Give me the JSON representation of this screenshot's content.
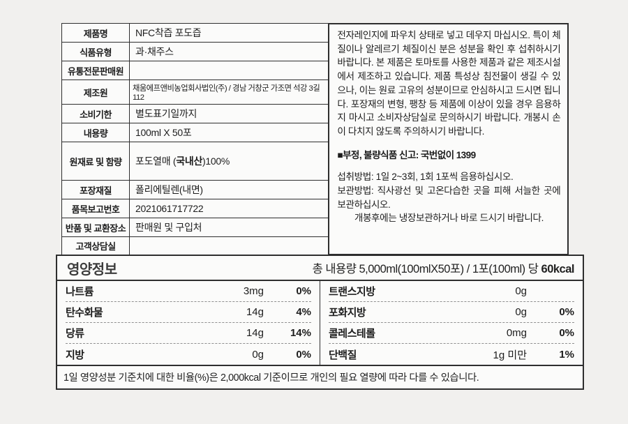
{
  "product_table": {
    "rows": [
      {
        "label": "제품명",
        "value": "NFC착즙 포도즙"
      },
      {
        "label": "식품유형",
        "value": "과·채주스"
      },
      {
        "label": "유통전문판매원",
        "value": ""
      },
      {
        "label": "제조원",
        "value": "채움에프앤비농업회사법인(주) / 경남 거창군 가조면 석강 3길 112"
      },
      {
        "label": "소비기한",
        "value": "별도표기일까지"
      },
      {
        "label": "내용량",
        "value": "100ml X 50포"
      },
      {
        "label": "원재료 및 함량",
        "value_pre": "포도열매 (",
        "value_bold": "국내산",
        "value_post": ")100%"
      },
      {
        "label": "포장재질",
        "value": "폴리에틸렌(내면)"
      },
      {
        "label": "품목보고번호",
        "value": "2021061717722"
      },
      {
        "label": "반품 및 교환장소",
        "value": "판매원 및 구입처"
      },
      {
        "label": "고객상담실",
        "value": ""
      }
    ]
  },
  "info_panel": {
    "paragraph": "전자레인지에 파우치 상태로 넣고 데우지 마십시오. 특이 체질이나 알레르기 체질이신 분은 성분을 확인 후 섭취하시기 바랍니다. 본 제품은 토마토를 사용한 제품과 같은 제조시설에서 제조하고 있습니다. 제품 특성상 침전물이 생길 수 있으나, 이는 원료 고유의 성분이므로 안심하시고 드시면 됩니다. 포장재의 변형, 팽창 등 제품에 이상이 있을 경우 음용하지 마시고 소비자상담실로 문의하시기 바랍니다. 개봉시 손이 다치지 않도록 주의하시기 바랍니다.",
    "report_notice": "■부정, 불량식품 신고: 국번없이 1399",
    "intake_method": "섭취방법: 1일 2~3회, 1회 1포씩 음용하십시오.",
    "storage_line1": "보관방법: 직사광선 및 고온다습한 곳을 피해 서늘한 곳에 보관하십시오.",
    "storage_line2": "개봉후에는 냉장보관하거나 바로 드시기 바랍니다."
  },
  "nutrition": {
    "title": "영양정보",
    "serving_prefix": "총 내용량 5,000ml(100mlX50포) / 1포(100ml) 당 ",
    "serving_kcal": "60kcal",
    "left_rows": [
      {
        "name": "나트륨",
        "amount": "3mg",
        "percent": "0%"
      },
      {
        "name": "탄수화물",
        "amount": "14g",
        "percent": "4%"
      },
      {
        "name": "당류",
        "amount": "14g",
        "percent": "14%"
      },
      {
        "name": "지방",
        "amount": "0g",
        "percent": "0%"
      }
    ],
    "right_rows": [
      {
        "name": "트랜스지방",
        "amount": "0g",
        "percent": ""
      },
      {
        "name": "포화지방",
        "amount": "0g",
        "percent": "0%"
      },
      {
        "name": "콜레스테롤",
        "amount": "0mg",
        "percent": "0%"
      },
      {
        "name": "단백질",
        "amount": "1g 미만",
        "percent": "1%"
      }
    ],
    "footnote": "1일 영양성분 기준치에 대한 비율(%)은 2,000kcal 기준이므로 개인의 필요 열량에 따라 다를 수 있습니다."
  }
}
